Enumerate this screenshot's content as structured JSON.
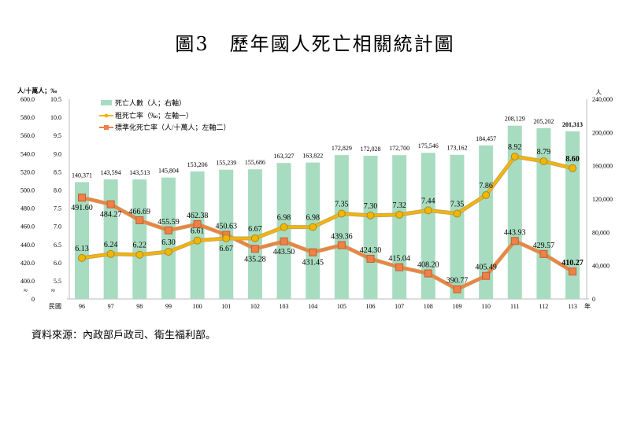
{
  "title": "圖3　歷年國人死亡相關統計圖",
  "source": "資料來源：內政部戶政司、衛生福利部。",
  "chart_data": {
    "type": "bar+line",
    "title": "圖3　歷年國人死亡相關統計圖",
    "x_prefix": "民國",
    "x_unit": "年",
    "left_unit": "人/十萬人；‰",
    "right_unit": "人",
    "categories": [
      "96",
      "97",
      "98",
      "99",
      "100",
      "101",
      "102",
      "103",
      "104",
      "105",
      "106",
      "107",
      "108",
      "109",
      "110",
      "111",
      "112",
      "113"
    ],
    "series": [
      {
        "name": "死亡人數（人；右軸）",
        "type": "bar",
        "axis": "right",
        "color": "#a8dcc0",
        "values": [
          140371,
          143594,
          143513,
          145804,
          153206,
          155239,
          155686,
          163327,
          163822,
          172829,
          172028,
          172700,
          175546,
          173162,
          184457,
          208129,
          205202,
          201313
        ],
        "labels": [
          "140,371",
          "143,594",
          "143,513",
          "145,804",
          "153,206",
          "155,239",
          "155,686",
          "163,327",
          "163,822",
          "172,829",
          "172,028",
          "172,700",
          "175,546",
          "173,162",
          "184,457",
          "208,129",
          "205,202",
          "201,313"
        ]
      },
      {
        "name": "粗死亡率（‰；左軸一）",
        "type": "line",
        "axis": "left1",
        "color": "#f2b700",
        "values": [
          6.13,
          6.24,
          6.22,
          6.3,
          6.61,
          6.67,
          6.67,
          6.98,
          6.98,
          7.35,
          7.3,
          7.32,
          7.44,
          7.35,
          7.86,
          8.92,
          8.79,
          8.6
        ],
        "labels": [
          "6.13",
          "6.24",
          "6.22",
          "6.30",
          "6.61",
          "6.67",
          "6.67",
          "6.98",
          "6.98",
          "7.35",
          "7.30",
          "7.32",
          "7.44",
          "7.35",
          "7.86",
          "8.92",
          "8.79",
          "8.60"
        ]
      },
      {
        "name": "標準化死亡率（人/十萬人；左軸二）",
        "type": "line",
        "axis": "left2",
        "color": "#ee8048",
        "values": [
          491.6,
          484.27,
          466.69,
          455.59,
          462.38,
          450.63,
          435.28,
          443.5,
          431.45,
          439.36,
          424.3,
          415.04,
          408.2,
          390.77,
          405.49,
          443.93,
          429.57,
          410.27
        ],
        "labels": [
          "491.60",
          "484.27",
          "466.69",
          "455.59",
          "462.38",
          "450.63",
          "435.28",
          "443.50",
          "431.45",
          "439.36",
          "424.30",
          "415.04",
          "408.20",
          "390.77",
          "405.49",
          "443.93",
          "429.57",
          "410.27"
        ]
      }
    ],
    "axes": {
      "left2": {
        "ticks": [
          "0",
          "400.0",
          "420.0",
          "440.0",
          "460.0",
          "480.0",
          "500.0",
          "520.0",
          "540.0",
          "560.0",
          "580.0",
          "600.0"
        ],
        "range": [
          400,
          600
        ],
        "broken": true
      },
      "left1": {
        "ticks": [
          "5.5",
          "6.0",
          "6.5",
          "7.0",
          "7.5",
          "8.0",
          "8.5",
          "9.0",
          "9.5",
          "10.0",
          "10.5"
        ],
        "range": [
          5.5,
          10.5
        ],
        "broken": true
      },
      "right": {
        "ticks": [
          "0",
          "40,000",
          "80,000",
          "120,000",
          "160,000",
          "200,000",
          "240,000"
        ],
        "range": [
          0,
          240000
        ]
      }
    },
    "break_symbol": "≈",
    "legend": "top-left",
    "grid": false
  }
}
